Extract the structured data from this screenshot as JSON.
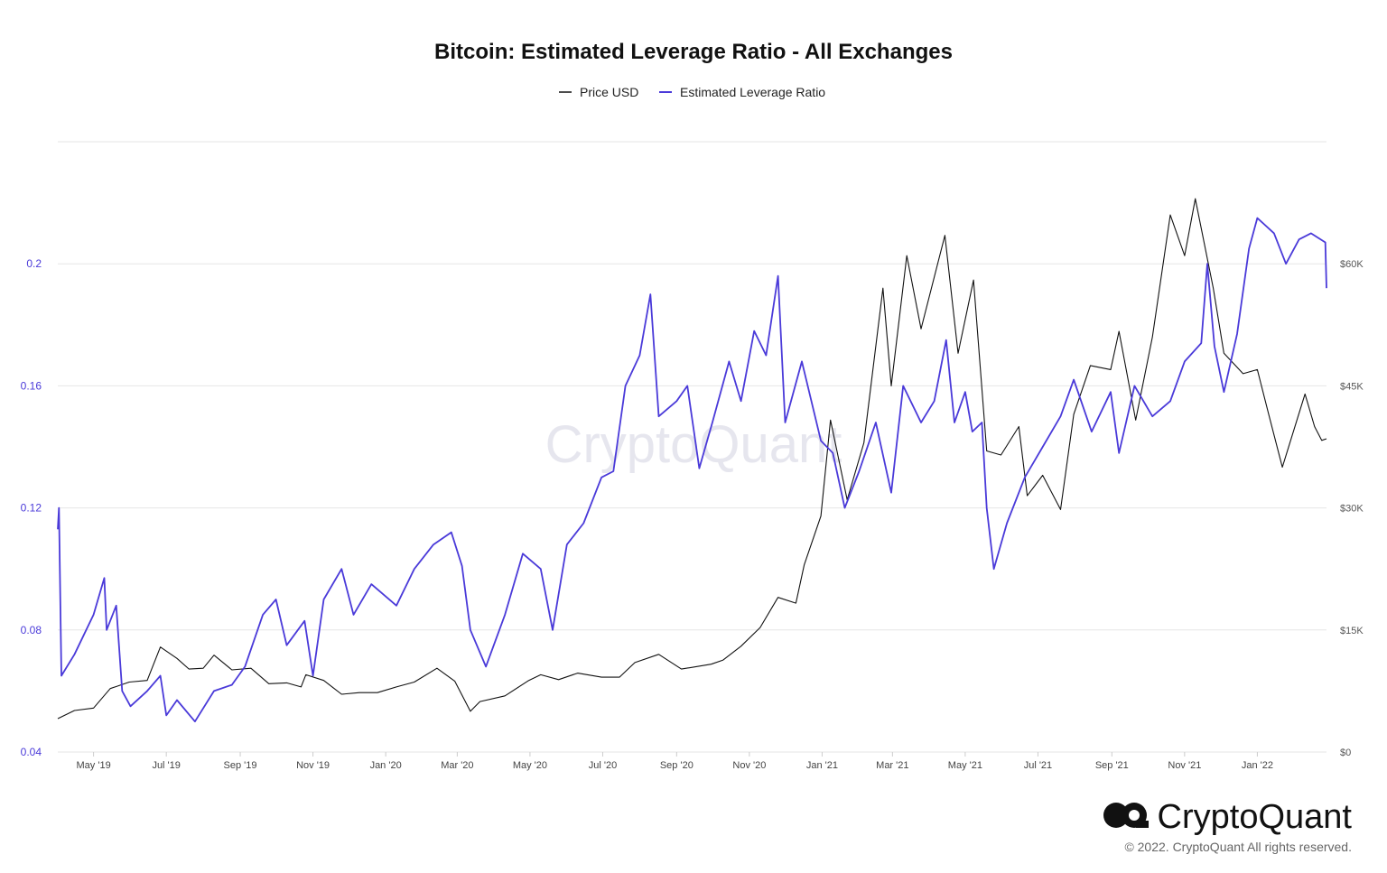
{
  "watermark": "CryptoQuant",
  "brand": {
    "name": "CryptoQuant",
    "icon": "cryptoquant-logo-icon",
    "copyright": "© 2022. CryptoQuant All rights reserved."
  },
  "colors": {
    "price": "#111111",
    "leverage": "#4a3ad9",
    "grid": "#e6e6e6"
  },
  "chart_data": {
    "type": "line",
    "title": "Bitcoin: Estimated Leverage Ratio - All Exchanges",
    "legend_position": "top-center",
    "grid": true,
    "x_range": [
      "2019-04-01",
      "2022-02-28"
    ],
    "x_ticks": [
      {
        "date": "2019-05-01",
        "label": "May '19"
      },
      {
        "date": "2019-07-01",
        "label": "Jul '19"
      },
      {
        "date": "2019-09-01",
        "label": "Sep '19"
      },
      {
        "date": "2019-11-01",
        "label": "Nov '19"
      },
      {
        "date": "2020-01-01",
        "label": "Jan '20"
      },
      {
        "date": "2020-03-01",
        "label": "Mar '20"
      },
      {
        "date": "2020-05-01",
        "label": "May '20"
      },
      {
        "date": "2020-07-01",
        "label": "Jul '20"
      },
      {
        "date": "2020-09-01",
        "label": "Sep '20"
      },
      {
        "date": "2020-11-01",
        "label": "Nov '20"
      },
      {
        "date": "2021-01-01",
        "label": "Jan '21"
      },
      {
        "date": "2021-03-01",
        "label": "Mar '21"
      },
      {
        "date": "2021-05-01",
        "label": "May '21"
      },
      {
        "date": "2021-07-01",
        "label": "Jul '21"
      },
      {
        "date": "2021-09-01",
        "label": "Sep '21"
      },
      {
        "date": "2021-11-01",
        "label": "Nov '21"
      },
      {
        "date": "2022-01-01",
        "label": "Jan '22"
      }
    ],
    "y_left": {
      "range": [
        0.04,
        0.24
      ],
      "ticks": [
        {
          "value": 0.04,
          "label": "0.04"
        },
        {
          "value": 0.08,
          "label": "0.08"
        },
        {
          "value": 0.12,
          "label": "0.12"
        },
        {
          "value": 0.16,
          "label": "0.16"
        },
        {
          "value": 0.2,
          "label": "0.2"
        }
      ]
    },
    "y_right": {
      "range": [
        0,
        75000
      ],
      "ticks": [
        {
          "value": 0,
          "label": "$0"
        },
        {
          "value": 15000,
          "label": "$15K"
        },
        {
          "value": 30000,
          "label": "$30K"
        },
        {
          "value": 45000,
          "label": "$45K"
        },
        {
          "value": 60000,
          "label": "$60K"
        }
      ]
    },
    "series": [
      {
        "name": "Price USD",
        "axis": "right",
        "color": "#111111",
        "points": [
          [
            "2019-04-01",
            4100
          ],
          [
            "2019-04-15",
            5100
          ],
          [
            "2019-05-01",
            5400
          ],
          [
            "2019-05-15",
            7800
          ],
          [
            "2019-05-31",
            8600
          ],
          [
            "2019-06-15",
            8800
          ],
          [
            "2019-06-26",
            12900
          ],
          [
            "2019-07-10",
            11500
          ],
          [
            "2019-07-20",
            10200
          ],
          [
            "2019-08-01",
            10300
          ],
          [
            "2019-08-10",
            11900
          ],
          [
            "2019-08-25",
            10100
          ],
          [
            "2019-09-10",
            10300
          ],
          [
            "2019-09-25",
            8400
          ],
          [
            "2019-10-10",
            8500
          ],
          [
            "2019-10-22",
            8000
          ],
          [
            "2019-10-26",
            9500
          ],
          [
            "2019-11-10",
            8800
          ],
          [
            "2019-11-25",
            7100
          ],
          [
            "2019-12-10",
            7300
          ],
          [
            "2019-12-25",
            7300
          ],
          [
            "2020-01-10",
            8000
          ],
          [
            "2020-01-25",
            8600
          ],
          [
            "2020-02-13",
            10300
          ],
          [
            "2020-02-28",
            8700
          ],
          [
            "2020-03-12",
            5000
          ],
          [
            "2020-03-20",
            6200
          ],
          [
            "2020-04-10",
            6900
          ],
          [
            "2020-04-30",
            8800
          ],
          [
            "2020-05-10",
            9500
          ],
          [
            "2020-05-25",
            8900
          ],
          [
            "2020-06-10",
            9700
          ],
          [
            "2020-06-30",
            9200
          ],
          [
            "2020-07-15",
            9200
          ],
          [
            "2020-07-28",
            11000
          ],
          [
            "2020-08-17",
            12000
          ],
          [
            "2020-09-05",
            10200
          ],
          [
            "2020-09-30",
            10800
          ],
          [
            "2020-10-10",
            11300
          ],
          [
            "2020-10-25",
            13000
          ],
          [
            "2020-11-10",
            15300
          ],
          [
            "2020-11-25",
            19000
          ],
          [
            "2020-12-10",
            18300
          ],
          [
            "2020-12-17",
            23000
          ],
          [
            "2020-12-31",
            29000
          ],
          [
            "2021-01-08",
            40800
          ],
          [
            "2021-01-22",
            31000
          ],
          [
            "2021-02-05",
            38000
          ],
          [
            "2021-02-21",
            57000
          ],
          [
            "2021-02-28",
            45000
          ],
          [
            "2021-03-13",
            61000
          ],
          [
            "2021-03-25",
            52000
          ],
          [
            "2021-04-14",
            63500
          ],
          [
            "2021-04-25",
            49000
          ],
          [
            "2021-05-08",
            58000
          ],
          [
            "2021-05-19",
            37000
          ],
          [
            "2021-05-31",
            36500
          ],
          [
            "2021-06-15",
            40000
          ],
          [
            "2021-06-22",
            31500
          ],
          [
            "2021-07-05",
            34000
          ],
          [
            "2021-07-20",
            29800
          ],
          [
            "2021-07-31",
            41500
          ],
          [
            "2021-08-14",
            47500
          ],
          [
            "2021-08-31",
            47000
          ],
          [
            "2021-09-07",
            51700
          ],
          [
            "2021-09-21",
            40800
          ],
          [
            "2021-10-05",
            51000
          ],
          [
            "2021-10-20",
            66000
          ],
          [
            "2021-11-01",
            61000
          ],
          [
            "2021-11-10",
            68000
          ],
          [
            "2021-11-25",
            57000
          ],
          [
            "2021-12-04",
            49000
          ],
          [
            "2021-12-20",
            46500
          ],
          [
            "2022-01-01",
            47000
          ],
          [
            "2022-01-10",
            41800
          ],
          [
            "2022-01-22",
            35000
          ],
          [
            "2022-02-10",
            44000
          ],
          [
            "2022-02-18",
            40000
          ],
          [
            "2022-02-24",
            38300
          ],
          [
            "2022-02-28",
            38500
          ]
        ]
      },
      {
        "name": "Estimated Leverage Ratio",
        "axis": "left",
        "color": "#4a3ad9",
        "points": [
          [
            "2019-04-01",
            0.113
          ],
          [
            "2019-04-02",
            0.12
          ],
          [
            "2019-04-04",
            0.065
          ],
          [
            "2019-04-15",
            0.072
          ],
          [
            "2019-05-01",
            0.085
          ],
          [
            "2019-05-10",
            0.097
          ],
          [
            "2019-05-12",
            0.08
          ],
          [
            "2019-05-20",
            0.088
          ],
          [
            "2019-05-25",
            0.06
          ],
          [
            "2019-06-01",
            0.055
          ],
          [
            "2019-06-15",
            0.06
          ],
          [
            "2019-06-26",
            0.065
          ],
          [
            "2019-07-01",
            0.052
          ],
          [
            "2019-07-10",
            0.057
          ],
          [
            "2019-07-25",
            0.05
          ],
          [
            "2019-08-10",
            0.06
          ],
          [
            "2019-08-25",
            0.062
          ],
          [
            "2019-09-05",
            0.068
          ],
          [
            "2019-09-20",
            0.085
          ],
          [
            "2019-10-01",
            0.09
          ],
          [
            "2019-10-10",
            0.075
          ],
          [
            "2019-10-25",
            0.083
          ],
          [
            "2019-11-01",
            0.065
          ],
          [
            "2019-11-10",
            0.09
          ],
          [
            "2019-11-25",
            0.1
          ],
          [
            "2019-12-05",
            0.085
          ],
          [
            "2019-12-20",
            0.095
          ],
          [
            "2020-01-10",
            0.088
          ],
          [
            "2020-01-25",
            0.1
          ],
          [
            "2020-02-10",
            0.108
          ],
          [
            "2020-02-25",
            0.112
          ],
          [
            "2020-03-05",
            0.101
          ],
          [
            "2020-03-12",
            0.08
          ],
          [
            "2020-03-25",
            0.068
          ],
          [
            "2020-04-10",
            0.085
          ],
          [
            "2020-04-25",
            0.105
          ],
          [
            "2020-05-10",
            0.1
          ],
          [
            "2020-05-20",
            0.08
          ],
          [
            "2020-06-01",
            0.108
          ],
          [
            "2020-06-15",
            0.115
          ],
          [
            "2020-06-30",
            0.13
          ],
          [
            "2020-07-10",
            0.132
          ],
          [
            "2020-07-20",
            0.16
          ],
          [
            "2020-08-01",
            0.17
          ],
          [
            "2020-08-10",
            0.19
          ],
          [
            "2020-08-17",
            0.15
          ],
          [
            "2020-09-01",
            0.155
          ],
          [
            "2020-09-10",
            0.16
          ],
          [
            "2020-09-20",
            0.133
          ],
          [
            "2020-10-01",
            0.148
          ],
          [
            "2020-10-15",
            0.168
          ],
          [
            "2020-10-25",
            0.155
          ],
          [
            "2020-11-05",
            0.178
          ],
          [
            "2020-11-15",
            0.17
          ],
          [
            "2020-11-25",
            0.196
          ],
          [
            "2020-12-01",
            0.148
          ],
          [
            "2020-12-15",
            0.168
          ],
          [
            "2020-12-31",
            0.142
          ],
          [
            "2021-01-10",
            0.138
          ],
          [
            "2021-01-20",
            0.12
          ],
          [
            "2021-02-01",
            0.132
          ],
          [
            "2021-02-15",
            0.148
          ],
          [
            "2021-02-28",
            0.125
          ],
          [
            "2021-03-10",
            0.16
          ],
          [
            "2021-03-25",
            0.148
          ],
          [
            "2021-04-05",
            0.155
          ],
          [
            "2021-04-15",
            0.175
          ],
          [
            "2021-04-22",
            0.148
          ],
          [
            "2021-05-01",
            0.158
          ],
          [
            "2021-05-07",
            0.145
          ],
          [
            "2021-05-15",
            0.148
          ],
          [
            "2021-05-19",
            0.12
          ],
          [
            "2021-05-25",
            0.1
          ],
          [
            "2021-06-05",
            0.115
          ],
          [
            "2021-06-20",
            0.13
          ],
          [
            "2021-07-05",
            0.14
          ],
          [
            "2021-07-20",
            0.15
          ],
          [
            "2021-07-31",
            0.162
          ],
          [
            "2021-08-15",
            0.145
          ],
          [
            "2021-08-31",
            0.158
          ],
          [
            "2021-09-07",
            0.138
          ],
          [
            "2021-09-20",
            0.16
          ],
          [
            "2021-10-05",
            0.15
          ],
          [
            "2021-10-20",
            0.155
          ],
          [
            "2021-11-01",
            0.168
          ],
          [
            "2021-11-15",
            0.174
          ],
          [
            "2021-11-20",
            0.2
          ],
          [
            "2021-11-26",
            0.173
          ],
          [
            "2021-12-04",
            0.158
          ],
          [
            "2021-12-15",
            0.177
          ],
          [
            "2021-12-25",
            0.205
          ],
          [
            "2022-01-01",
            0.215
          ],
          [
            "2022-01-15",
            0.21
          ],
          [
            "2022-01-25",
            0.2
          ],
          [
            "2022-02-05",
            0.208
          ],
          [
            "2022-02-15",
            0.21
          ],
          [
            "2022-02-27",
            0.207
          ],
          [
            "2022-02-28",
            0.192
          ]
        ]
      }
    ]
  }
}
